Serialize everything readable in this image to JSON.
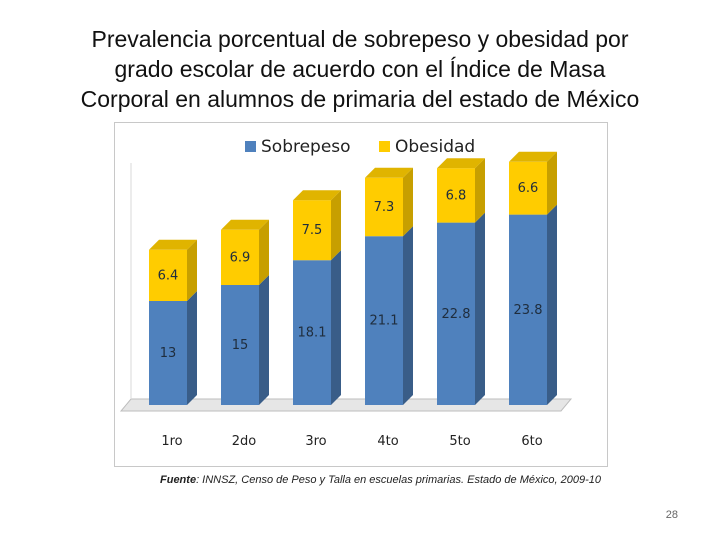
{
  "title_lines": [
    "Prevalencia porcentual de sobrepeso y obesidad por",
    "grado escolar de acuerdo con el Índice de Masa",
    "Corporal en alumnos de primaria del estado de México"
  ],
  "chart_data": {
    "type": "bar",
    "stacked": true,
    "title": "Prevalencia porcentual de sobrepeso y obesidad por grado escolar de acuerdo con el Índice de Masa Corporal en alumnos de primaria del estado de México",
    "categories": [
      "1ro",
      "2do",
      "3ro",
      "4to",
      "5to",
      "6to"
    ],
    "series": [
      {
        "name": "Sobrepeso",
        "values": [
          13,
          15,
          18.1,
          21.1,
          22.8,
          23.8
        ],
        "color": "#4f81bd"
      },
      {
        "name": "Obesidad",
        "values": [
          6.4,
          6.9,
          7.5,
          7.3,
          6.8,
          6.6
        ],
        "color": "#ffcc00"
      }
    ],
    "value_labels": {
      "Sobrepeso": [
        "13",
        "15",
        "18.1",
        "21.1",
        "22.8",
        "23.8"
      ],
      "Obesidad": [
        "6.4",
        "6.9",
        "7.5",
        "7.3",
        "6.8",
        "6.6"
      ]
    },
    "xlabel": "",
    "ylabel": "",
    "ylim": [
      0,
      32
    ],
    "grid": false,
    "legend": "top"
  },
  "source": {
    "label": "Fuente",
    "text": ": INNSZ, Censo de Peso y Talla en escuelas primarias. Estado de México, 2009-10"
  },
  "page_number": "28"
}
